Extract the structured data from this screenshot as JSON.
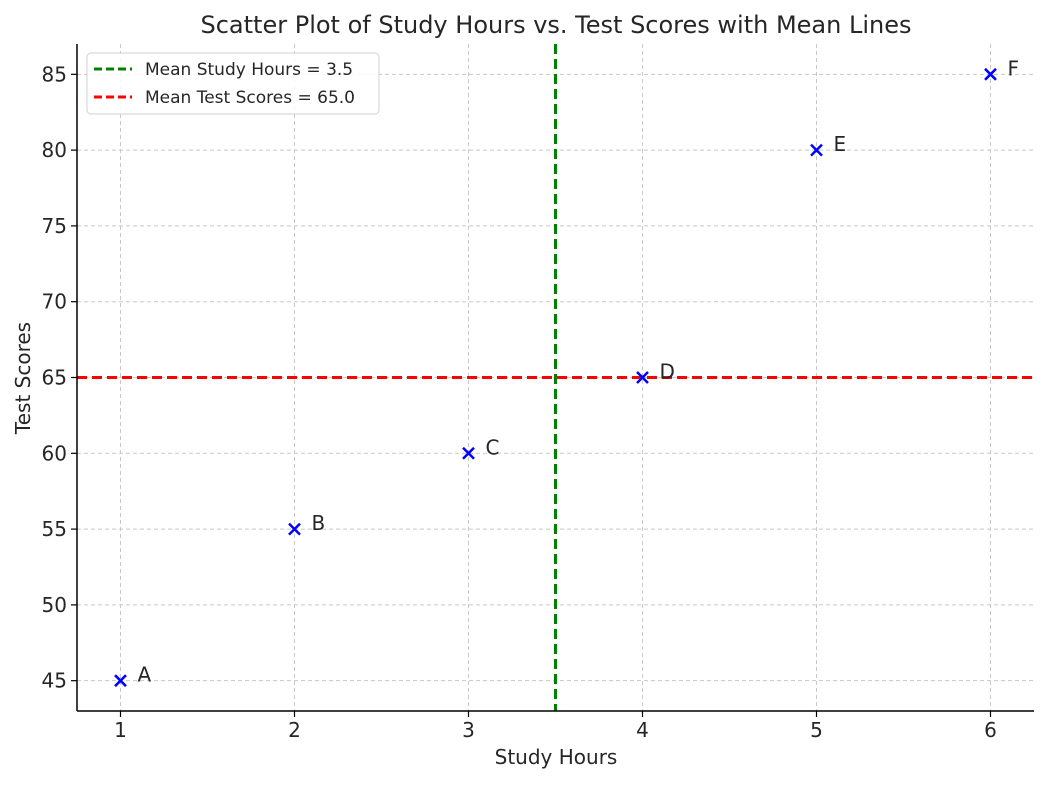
{
  "chart_data": {
    "type": "scatter",
    "title": "Scatter Plot of Study Hours vs. Test Scores with Mean Lines",
    "xlabel": "Study Hours",
    "ylabel": "Test Scores",
    "xlim": [
      0.75,
      6.25
    ],
    "ylim": [
      43,
      87
    ],
    "xticks": [
      1,
      2,
      3,
      4,
      5,
      6
    ],
    "yticks": [
      45,
      50,
      55,
      60,
      65,
      70,
      75,
      80,
      85
    ],
    "grid": true,
    "legend_position": "top-left",
    "points": [
      {
        "label": "A",
        "x": 1,
        "y": 45
      },
      {
        "label": "B",
        "x": 2,
        "y": 55
      },
      {
        "label": "C",
        "x": 3,
        "y": 60
      },
      {
        "label": "D",
        "x": 4,
        "y": 65
      },
      {
        "label": "E",
        "x": 5,
        "y": 80
      },
      {
        "label": "F",
        "x": 6,
        "y": 85
      }
    ],
    "marker": "x",
    "marker_color": "#0000ff",
    "mean_lines": [
      {
        "name": "Mean Study Hours = 3.5",
        "orientation": "vertical",
        "value": 3.5,
        "color": "#008000",
        "style": "dashed"
      },
      {
        "name": "Mean Test Scores = 65.0",
        "orientation": "horizontal",
        "value": 65.0,
        "color": "#ff0000",
        "style": "dashed"
      }
    ]
  }
}
